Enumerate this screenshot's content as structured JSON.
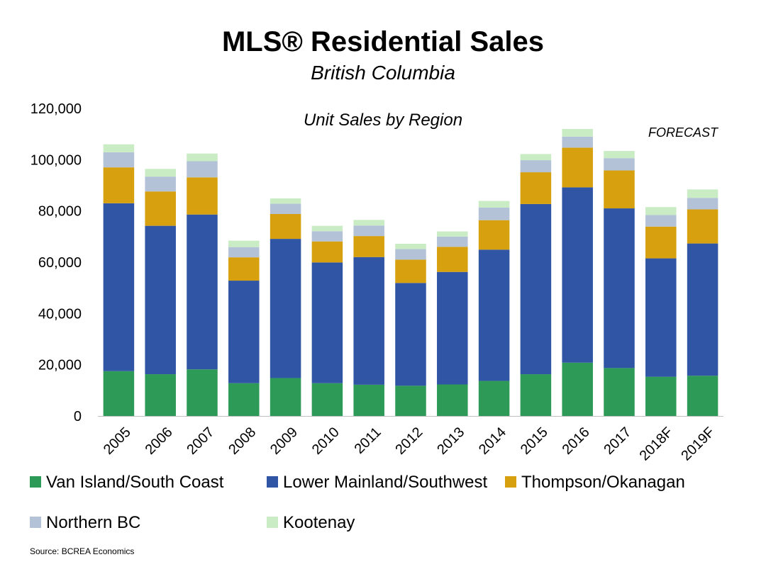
{
  "chart_data": {
    "type": "bar",
    "stacked": true,
    "title": "MLS® Residential Sales",
    "subtitle": "British Columbia",
    "inner_title": "Unit Sales by Region",
    "annotation": "FORECAST",
    "source": "Source: BCREA Economics",
    "xlabel": "",
    "ylabel": "",
    "ylim": [
      0,
      120000
    ],
    "yticks": [
      0,
      20000,
      40000,
      60000,
      80000,
      100000,
      120000
    ],
    "ytick_labels": [
      "0",
      "20,000",
      "40,000",
      "60,000",
      "80,000",
      "100,000",
      "120,000"
    ],
    "grid": false,
    "legend_position": "bottom",
    "categories": [
      "2005",
      "2006",
      "2007",
      "2008",
      "2009",
      "2010",
      "2011",
      "2012",
      "2013",
      "2014",
      "2015",
      "2016",
      "2017",
      "2018F",
      "2019F"
    ],
    "series": [
      {
        "name": "Van Island/South Coast",
        "color": "#2e9a57",
        "values": [
          17500,
          16300,
          18200,
          12800,
          14800,
          12800,
          12200,
          11800,
          12300,
          13700,
          16300,
          20800,
          18700,
          15300,
          15700
        ]
      },
      {
        "name": "Lower Mainland/Southwest",
        "color": "#2f55a4",
        "values": [
          65500,
          57900,
          60400,
          40000,
          54300,
          47100,
          49800,
          40100,
          43900,
          51200,
          66400,
          68400,
          62300,
          46200,
          51600
        ]
      },
      {
        "name": "Thompson/Okanagan",
        "color": "#d6a00f",
        "values": [
          14000,
          13400,
          14500,
          9100,
          9700,
          8200,
          8200,
          9100,
          9800,
          11500,
          12400,
          15500,
          14800,
          12400,
          13300
        ]
      },
      {
        "name": "Northern BC",
        "color": "#b4c2d8",
        "values": [
          5900,
          5800,
          6300,
          4000,
          4000,
          4000,
          4100,
          4100,
          4000,
          4900,
          4700,
          4300,
          4800,
          4500,
          4500
        ]
      },
      {
        "name": "Kootenay",
        "color": "#c9ecc4",
        "values": [
          3100,
          3000,
          3000,
          2500,
          2100,
          2100,
          2200,
          2100,
          2000,
          2600,
          2400,
          3000,
          2800,
          3100,
          3300
        ]
      }
    ]
  }
}
